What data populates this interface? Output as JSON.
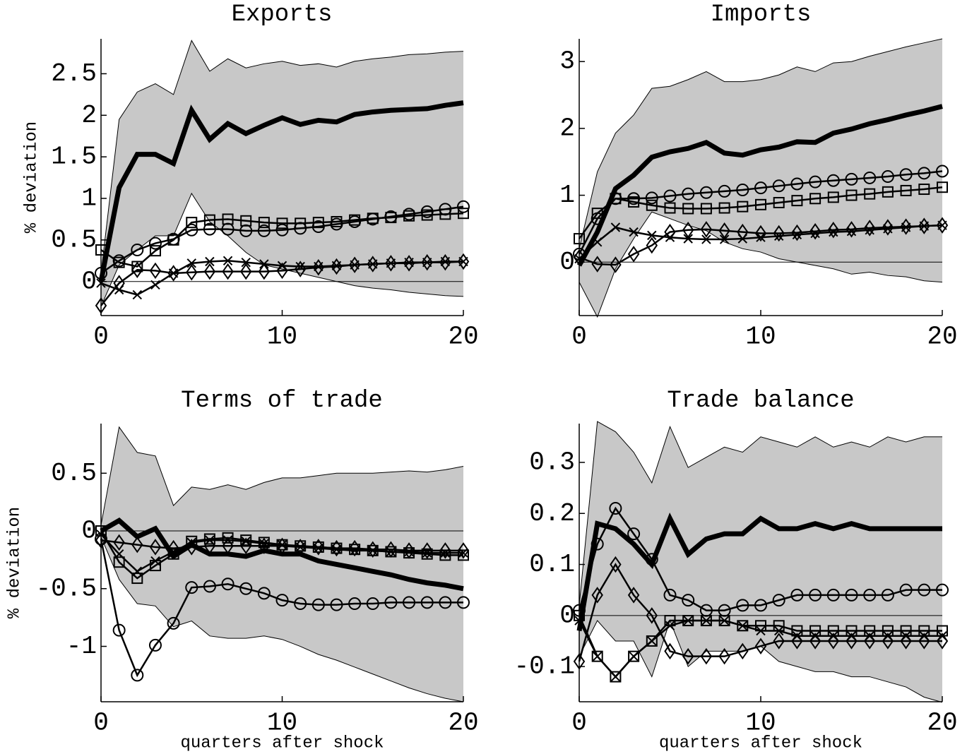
{
  "chart_data": [
    {
      "type": "line",
      "title": "Exports",
      "ylabel": "% deviation",
      "x": [
        0,
        1,
        2,
        3,
        4,
        5,
        6,
        7,
        8,
        9,
        10,
        11,
        12,
        13,
        14,
        15,
        16,
        17,
        18,
        19,
        20
      ],
      "xlim": [
        0,
        20
      ],
      "xticks": [
        0,
        10,
        20
      ],
      "ylim": [
        -0.41,
        2.92
      ],
      "yticks": [
        0,
        0.5,
        1,
        1.5,
        2,
        2.5
      ],
      "hline": 0,
      "band": {
        "color": "#c8c8c8",
        "upper": [
          0.1,
          1.95,
          2.28,
          2.38,
          2.25,
          2.9,
          2.53,
          2.68,
          2.57,
          2.62,
          2.65,
          2.6,
          2.62,
          2.58,
          2.65,
          2.68,
          2.7,
          2.73,
          2.74,
          2.76,
          2.77
        ],
        "lower": [
          -0.3,
          0.2,
          0.38,
          0.55,
          0.55,
          1.06,
          0.72,
          0.55,
          0.35,
          0.2,
          0.15,
          0.1,
          0.05,
          0.0,
          -0.05,
          -0.08,
          -0.1,
          -0.13,
          -0.15,
          -0.17,
          -0.18
        ]
      },
      "series": [
        {
          "color": "#000000",
          "width": 7,
          "marker": "none",
          "values": [
            0,
            1.13,
            1.53,
            1.53,
            1.42,
            2.06,
            1.71,
            1.9,
            1.78,
            1.88,
            1.97,
            1.89,
            1.94,
            1.92,
            2.01,
            2.04,
            2.06,
            2.07,
            2.08,
            2.12,
            2.15
          ]
        },
        {
          "color": "#000000",
          "width": 2.5,
          "marker": "circle",
          "values": [
            0.1,
            0.25,
            0.38,
            0.46,
            0.51,
            0.62,
            0.63,
            0.63,
            0.61,
            0.61,
            0.62,
            0.64,
            0.66,
            0.69,
            0.72,
            0.75,
            0.78,
            0.81,
            0.84,
            0.87,
            0.9
          ]
        },
        {
          "color": "#000000",
          "width": 2.5,
          "marker": "square",
          "values": [
            0.38,
            0.23,
            0.18,
            0.37,
            0.5,
            0.71,
            0.74,
            0.75,
            0.73,
            0.71,
            0.7,
            0.7,
            0.71,
            0.72,
            0.74,
            0.76,
            0.77,
            0.79,
            0.8,
            0.81,
            0.82
          ]
        },
        {
          "color": "#000000",
          "width": 2.5,
          "marker": "cross",
          "values": [
            -0.02,
            -0.1,
            -0.16,
            -0.04,
            0.1,
            0.22,
            0.24,
            0.25,
            0.23,
            0.21,
            0.19,
            0.18,
            0.18,
            0.19,
            0.2,
            0.21,
            0.22,
            0.23,
            0.23,
            0.24,
            0.24
          ]
        },
        {
          "color": "#000000",
          "width": 2.5,
          "marker": "diamond",
          "values": [
            -0.29,
            -0.02,
            0.14,
            0.13,
            0.1,
            0.11,
            0.12,
            0.12,
            0.12,
            0.12,
            0.13,
            0.15,
            0.17,
            0.18,
            0.2,
            0.21,
            0.22,
            0.22,
            0.23,
            0.23,
            0.24
          ]
        }
      ]
    },
    {
      "type": "line",
      "title": "Imports",
      "x": [
        0,
        1,
        2,
        3,
        4,
        5,
        6,
        7,
        8,
        9,
        10,
        11,
        12,
        13,
        14,
        15,
        16,
        17,
        18,
        19,
        20
      ],
      "xlim": [
        0,
        20
      ],
      "xticks": [
        0,
        10,
        20
      ],
      "ylim": [
        -0.8,
        3.34
      ],
      "yticks": [
        0,
        1,
        2,
        3
      ],
      "hline": 0,
      "band": {
        "color": "#c8c8c8",
        "upper": [
          0.2,
          1.35,
          1.93,
          2.2,
          2.6,
          2.63,
          2.73,
          2.85,
          2.7,
          2.7,
          2.73,
          2.8,
          2.92,
          2.85,
          2.98,
          3.0,
          3.08,
          3.15,
          3.22,
          3.28,
          3.34
        ],
        "lower": [
          -0.3,
          -0.82,
          -0.1,
          0.35,
          0.75,
          0.65,
          0.55,
          0.47,
          0.3,
          0.2,
          0.15,
          0.05,
          0.0,
          -0.05,
          -0.1,
          -0.18,
          -0.15,
          -0.2,
          -0.22,
          -0.28,
          -0.3
        ]
      },
      "series": [
        {
          "color": "#000000",
          "width": 7,
          "marker": "none",
          "values": [
            -0.05,
            0.45,
            1.1,
            1.3,
            1.57,
            1.65,
            1.7,
            1.79,
            1.63,
            1.6,
            1.68,
            1.72,
            1.8,
            1.79,
            1.93,
            1.99,
            2.07,
            2.13,
            2.2,
            2.26,
            2.33
          ]
        },
        {
          "color": "#000000",
          "width": 2.5,
          "marker": "circle",
          "values": [
            0.12,
            0.65,
            0.95,
            0.95,
            0.96,
            0.99,
            1.02,
            1.04,
            1.06,
            1.08,
            1.11,
            1.14,
            1.17,
            1.2,
            1.22,
            1.24,
            1.26,
            1.28,
            1.31,
            1.33,
            1.36
          ]
        },
        {
          "color": "#000000",
          "width": 2.5,
          "marker": "square",
          "values": [
            0.35,
            0.73,
            0.95,
            0.9,
            0.85,
            0.81,
            0.8,
            0.8,
            0.81,
            0.83,
            0.86,
            0.89,
            0.92,
            0.95,
            0.97,
            1.0,
            1.02,
            1.05,
            1.07,
            1.09,
            1.12
          ]
        },
        {
          "color": "#000000",
          "width": 2.5,
          "marker": "cross",
          "values": [
            0.05,
            0.3,
            0.52,
            0.45,
            0.4,
            0.37,
            0.35,
            0.34,
            0.34,
            0.35,
            0.37,
            0.39,
            0.41,
            0.43,
            0.45,
            0.46,
            0.48,
            0.5,
            0.52,
            0.54,
            0.55
          ]
        },
        {
          "color": "#000000",
          "width": 2.5,
          "marker": "diamond",
          "values": [
            0.07,
            -0.03,
            -0.04,
            0.12,
            0.25,
            0.45,
            0.48,
            0.49,
            0.47,
            0.45,
            0.43,
            0.43,
            0.44,
            0.46,
            0.48,
            0.49,
            0.51,
            0.52,
            0.53,
            0.54,
            0.55
          ]
        }
      ]
    },
    {
      "type": "line",
      "title": "Terms of trade",
      "ylabel": "% deviation",
      "xlabel": "quarters after shock",
      "x": [
        0,
        1,
        2,
        3,
        4,
        5,
        6,
        7,
        8,
        9,
        10,
        11,
        12,
        13,
        14,
        15,
        16,
        17,
        18,
        19,
        20
      ],
      "xlim": [
        0,
        20
      ],
      "xticks": [
        0,
        10,
        20
      ],
      "ylim": [
        -1.48,
        0.93
      ],
      "yticks": [
        -1,
        -0.5,
        0,
        0.5
      ],
      "hline": 0,
      "band": {
        "color": "#c8c8c8",
        "upper": [
          0.05,
          0.9,
          0.68,
          0.65,
          0.22,
          0.38,
          0.36,
          0.4,
          0.36,
          0.42,
          0.46,
          0.46,
          0.48,
          0.5,
          0.5,
          0.5,
          0.51,
          0.52,
          0.51,
          0.53,
          0.56
        ],
        "lower": [
          -0.05,
          -0.42,
          -0.63,
          -0.65,
          -0.83,
          -0.78,
          -0.91,
          -0.93,
          -0.93,
          -0.91,
          -0.94,
          -1.0,
          -1.07,
          -1.12,
          -1.18,
          -1.24,
          -1.3,
          -1.36,
          -1.41,
          -1.45,
          -1.48
        ]
      },
      "series": [
        {
          "color": "#000000",
          "width": 7,
          "marker": "none",
          "values": [
            0,
            0.09,
            -0.05,
            0.02,
            -0.22,
            -0.12,
            -0.2,
            -0.2,
            -0.22,
            -0.17,
            -0.2,
            -0.2,
            -0.26,
            -0.29,
            -0.32,
            -0.35,
            -0.38,
            -0.42,
            -0.45,
            -0.47,
            -0.5
          ]
        },
        {
          "color": "#000000",
          "width": 2.5,
          "marker": "circle",
          "values": [
            -0.07,
            -0.86,
            -1.25,
            -0.99,
            -0.8,
            -0.49,
            -0.48,
            -0.46,
            -0.5,
            -0.54,
            -0.6,
            -0.63,
            -0.64,
            -0.64,
            -0.63,
            -0.63,
            -0.62,
            -0.62,
            -0.62,
            -0.62,
            -0.62
          ]
        },
        {
          "color": "#000000",
          "width": 2.5,
          "marker": "square",
          "values": [
            0,
            -0.27,
            -0.41,
            -0.3,
            -0.2,
            -0.09,
            -0.07,
            -0.06,
            -0.08,
            -0.1,
            -0.12,
            -0.13,
            -0.14,
            -0.15,
            -0.16,
            -0.17,
            -0.18,
            -0.19,
            -0.2,
            -0.21,
            -0.21
          ]
        },
        {
          "color": "#000000",
          "width": 2.5,
          "marker": "cross",
          "values": [
            -0.03,
            -0.2,
            -0.35,
            -0.26,
            -0.18,
            -0.1,
            -0.08,
            -0.08,
            -0.09,
            -0.11,
            -0.12,
            -0.14,
            -0.15,
            -0.16,
            -0.17,
            -0.17,
            -0.18,
            -0.18,
            -0.19,
            -0.19,
            -0.19
          ]
        },
        {
          "color": "#000000",
          "width": 2.5,
          "marker": "diamond",
          "values": [
            -0.08,
            -0.1,
            -0.12,
            -0.14,
            -0.15,
            -0.14,
            -0.13,
            -0.13,
            -0.13,
            -0.13,
            -0.13,
            -0.14,
            -0.14,
            -0.15,
            -0.15,
            -0.16,
            -0.16,
            -0.17,
            -0.17,
            -0.17,
            -0.17
          ]
        }
      ]
    },
    {
      "type": "line",
      "title": "Trade balance",
      "xlabel": "quarters after shock",
      "x": [
        0,
        1,
        2,
        3,
        4,
        5,
        6,
        7,
        8,
        9,
        10,
        11,
        12,
        13,
        14,
        15,
        16,
        17,
        18,
        19,
        20
      ],
      "xlim": [
        0,
        20
      ],
      "xticks": [
        0,
        10,
        20
      ],
      "ylim": [
        -0.169,
        0.376
      ],
      "yticks": [
        -0.1,
        0,
        0.1,
        0.2,
        0.3
      ],
      "hline": 0,
      "band": {
        "color": "#c8c8c8",
        "upper": [
          0.02,
          0.38,
          0.36,
          0.32,
          0.26,
          0.37,
          0.29,
          0.31,
          0.33,
          0.32,
          0.35,
          0.34,
          0.33,
          0.35,
          0.33,
          0.34,
          0.33,
          0.35,
          0.34,
          0.35,
          0.35
        ],
        "lower": [
          -0.08,
          -0.01,
          -0.05,
          -0.05,
          -0.12,
          -0.01,
          -0.1,
          -0.07,
          -0.07,
          -0.07,
          -0.06,
          -0.09,
          -0.1,
          -0.11,
          -0.11,
          -0.12,
          -0.12,
          -0.13,
          -0.14,
          -0.16,
          -0.17
        ]
      },
      "series": [
        {
          "color": "#000000",
          "width": 7,
          "marker": "none",
          "values": [
            -0.03,
            0.18,
            0.17,
            0.14,
            0.1,
            0.19,
            0.12,
            0.15,
            0.16,
            0.16,
            0.19,
            0.17,
            0.17,
            0.18,
            0.17,
            0.18,
            0.17,
            0.17,
            0.17,
            0.17,
            0.17
          ]
        },
        {
          "color": "#000000",
          "width": 2.5,
          "marker": "circle",
          "values": [
            0.01,
            0.14,
            0.21,
            0.16,
            0.11,
            0.04,
            0.03,
            0.01,
            0.01,
            0.02,
            0.02,
            0.03,
            0.04,
            0.04,
            0.04,
            0.04,
            0.04,
            0.04,
            0.05,
            0.05,
            0.05
          ]
        },
        {
          "color": "#000000",
          "width": 2.5,
          "marker": "square",
          "values": [
            0.0,
            -0.08,
            -0.12,
            -0.08,
            -0.05,
            -0.01,
            -0.01,
            -0.01,
            -0.01,
            -0.02,
            -0.02,
            -0.02,
            -0.03,
            -0.03,
            -0.03,
            -0.03,
            -0.03,
            -0.03,
            -0.03,
            -0.03,
            -0.03
          ]
        },
        {
          "color": "#000000",
          "width": 2.5,
          "marker": "cross",
          "values": [
            -0.01,
            -0.08,
            -0.12,
            -0.08,
            -0.05,
            -0.02,
            -0.01,
            -0.01,
            -0.01,
            -0.02,
            -0.03,
            -0.03,
            -0.04,
            -0.04,
            -0.04,
            -0.04,
            -0.04,
            -0.04,
            -0.04,
            -0.04,
            -0.04
          ]
        },
        {
          "color": "#000000",
          "width": 2.5,
          "marker": "diamond",
          "values": [
            -0.09,
            0.04,
            0.1,
            0.04,
            0.0,
            -0.07,
            -0.08,
            -0.08,
            -0.08,
            -0.07,
            -0.06,
            -0.05,
            -0.05,
            -0.05,
            -0.05,
            -0.05,
            -0.05,
            -0.05,
            -0.05,
            -0.05,
            -0.05
          ]
        }
      ]
    }
  ]
}
